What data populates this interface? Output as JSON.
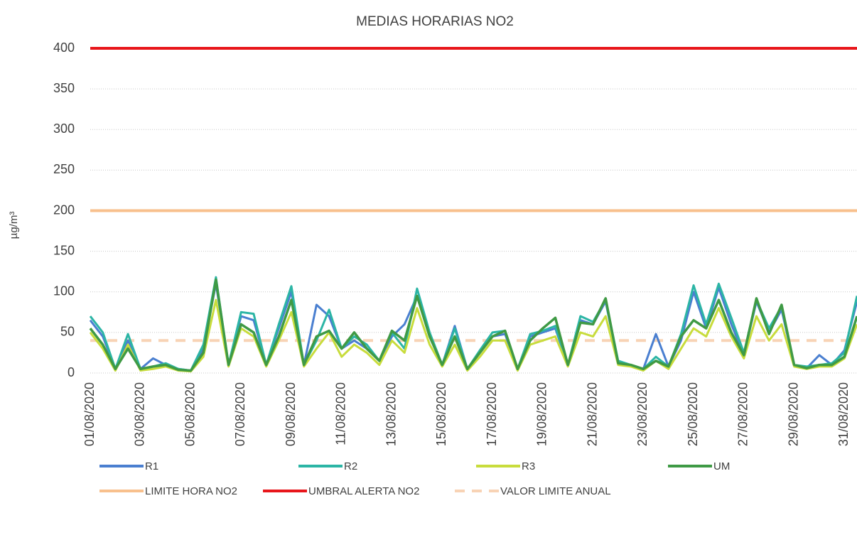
{
  "chart_data": {
    "type": "line",
    "title": "MEDIAS HORARIAS NO2",
    "y_label": "µg/m³",
    "categories": [
      "01/08/2020",
      null,
      null,
      null,
      "03/08/2020",
      null,
      null,
      null,
      "05/08/2020",
      null,
      null,
      null,
      "07/08/2020",
      null,
      null,
      null,
      "09/08/2020",
      null,
      null,
      null,
      "11/08/2020",
      null,
      null,
      null,
      "13/08/2020",
      null,
      null,
      null,
      "15/08/2020",
      null,
      null,
      null,
      "17/08/2020",
      null,
      null,
      null,
      "19/08/2020",
      null,
      null,
      null,
      "21/08/2020",
      null,
      null,
      null,
      "23/08/2020",
      null,
      null,
      null,
      "25/08/2020",
      null,
      null,
      null,
      "27/08/2020",
      null,
      null,
      null,
      "29/08/2020",
      null,
      null,
      null,
      "31/08/2020",
      null
    ],
    "series": [
      {
        "name": "R1",
        "color": "#4a7fd0",
        "values": [
          65,
          45,
          5,
          40,
          5,
          18,
          10,
          5,
          3,
          30,
          110,
          10,
          70,
          65,
          10,
          55,
          100,
          10,
          84,
          70,
          30,
          40,
          30,
          15,
          45,
          60,
          95,
          45,
          10,
          58,
          5,
          25,
          45,
          48,
          5,
          45,
          50,
          55,
          10,
          65,
          60,
          88,
          12,
          10,
          5,
          48,
          8,
          40,
          100,
          55,
          105,
          60,
          22,
          88,
          50,
          78,
          10,
          6,
          22,
          10,
          28,
          88
        ]
      },
      {
        "name": "R2",
        "color": "#2cb5a5",
        "values": [
          70,
          50,
          5,
          48,
          5,
          8,
          12,
          5,
          3,
          35,
          118,
          10,
          75,
          73,
          10,
          60,
          107,
          10,
          40,
          78,
          30,
          45,
          35,
          15,
          50,
          30,
          104,
          50,
          10,
          55,
          5,
          28,
          50,
          52,
          5,
          48,
          52,
          58,
          10,
          70,
          63,
          90,
          15,
          10,
          5,
          20,
          8,
          48,
          108,
          60,
          110,
          68,
          25,
          90,
          55,
          82,
          10,
          8,
          10,
          12,
          25,
          95
        ]
      },
      {
        "name": "R3",
        "color": "#c8dc3c",
        "values": [
          50,
          30,
          3,
          35,
          3,
          5,
          8,
          3,
          2,
          20,
          90,
          8,
          55,
          45,
          8,
          40,
          75,
          8,
          30,
          50,
          20,
          35,
          25,
          10,
          40,
          25,
          80,
          35,
          8,
          35,
          3,
          20,
          40,
          40,
          3,
          35,
          40,
          45,
          8,
          50,
          45,
          70,
          10,
          8,
          3,
          15,
          5,
          30,
          55,
          45,
          80,
          45,
          18,
          70,
          40,
          60,
          8,
          5,
          8,
          8,
          18,
          60
        ]
      },
      {
        "name": "UM",
        "color": "#3f9a45",
        "values": [
          55,
          35,
          5,
          30,
          5,
          8,
          10,
          4,
          3,
          25,
          115,
          10,
          60,
          50,
          10,
          45,
          90,
          10,
          45,
          52,
          30,
          50,
          30,
          15,
          52,
          40,
          95,
          45,
          10,
          45,
          5,
          25,
          45,
          52,
          5,
          40,
          55,
          68,
          10,
          62,
          60,
          92,
          12,
          10,
          5,
          15,
          8,
          45,
          65,
          55,
          90,
          50,
          22,
          92,
          48,
          84,
          10,
          6,
          10,
          10,
          20,
          70
        ]
      }
    ],
    "reference_lines": [
      {
        "name": "LIMITE HORA NO2",
        "color": "#f8c08d",
        "value": 200,
        "dashed": false
      },
      {
        "name": "UMBRAL ALERTA NO2",
        "color": "#e8161b",
        "value": 400,
        "dashed": false
      },
      {
        "name": "VALOR LIMITE ANUAL",
        "color": "#f8d3b5",
        "value": 40,
        "dashed": true
      }
    ],
    "ylim": [
      0,
      400
    ],
    "yticks": [
      0,
      50,
      100,
      150,
      200,
      250,
      300,
      350,
      400
    ],
    "grid": true
  }
}
